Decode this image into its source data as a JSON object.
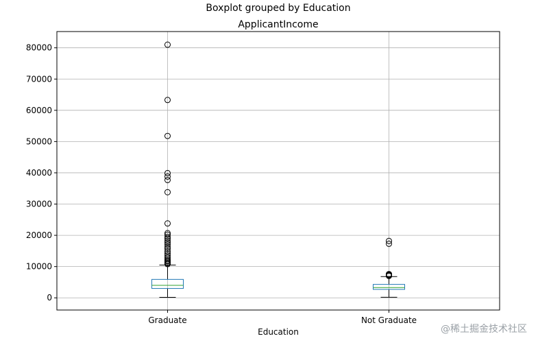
{
  "chart_data": {
    "type": "boxplot",
    "suptitle": "Boxplot grouped by Education",
    "title": "ApplicantIncome",
    "xlabel": "Education",
    "ylabel": "",
    "ylim": [
      -3900,
      85200
    ],
    "yticks": [
      0,
      10000,
      20000,
      30000,
      40000,
      50000,
      60000,
      70000,
      80000
    ],
    "grid": true,
    "categories": [
      "Graduate",
      "Not Graduate"
    ],
    "boxes": [
      {
        "name": "Graduate",
        "whisker_low": 150,
        "q1": 3000,
        "median": 4000,
        "q3": 5900,
        "whisker_high": 10500,
        "outliers": [
          10800,
          11000,
          11300,
          11700,
          12000,
          12500,
          13000,
          13600,
          14200,
          14900,
          15700,
          16300,
          17000,
          17600,
          18200,
          18900,
          19500,
          20200,
          20700,
          23800,
          33800,
          37700,
          38800,
          39900,
          51800,
          63300,
          81000
        ]
      },
      {
        "name": "Not Graduate",
        "whisker_low": 200,
        "q1": 2700,
        "median": 3300,
        "q3": 4300,
        "whisker_high": 6800,
        "outliers": [
          7000,
          7200,
          7400,
          7600,
          17300,
          18200
        ]
      }
    ],
    "colors": {
      "box": "#1f77b4",
      "median": "#2ca02c",
      "whisker": "#000000",
      "grid": "#b0b0b0"
    }
  },
  "watermark": "@稀土掘金技术社区"
}
